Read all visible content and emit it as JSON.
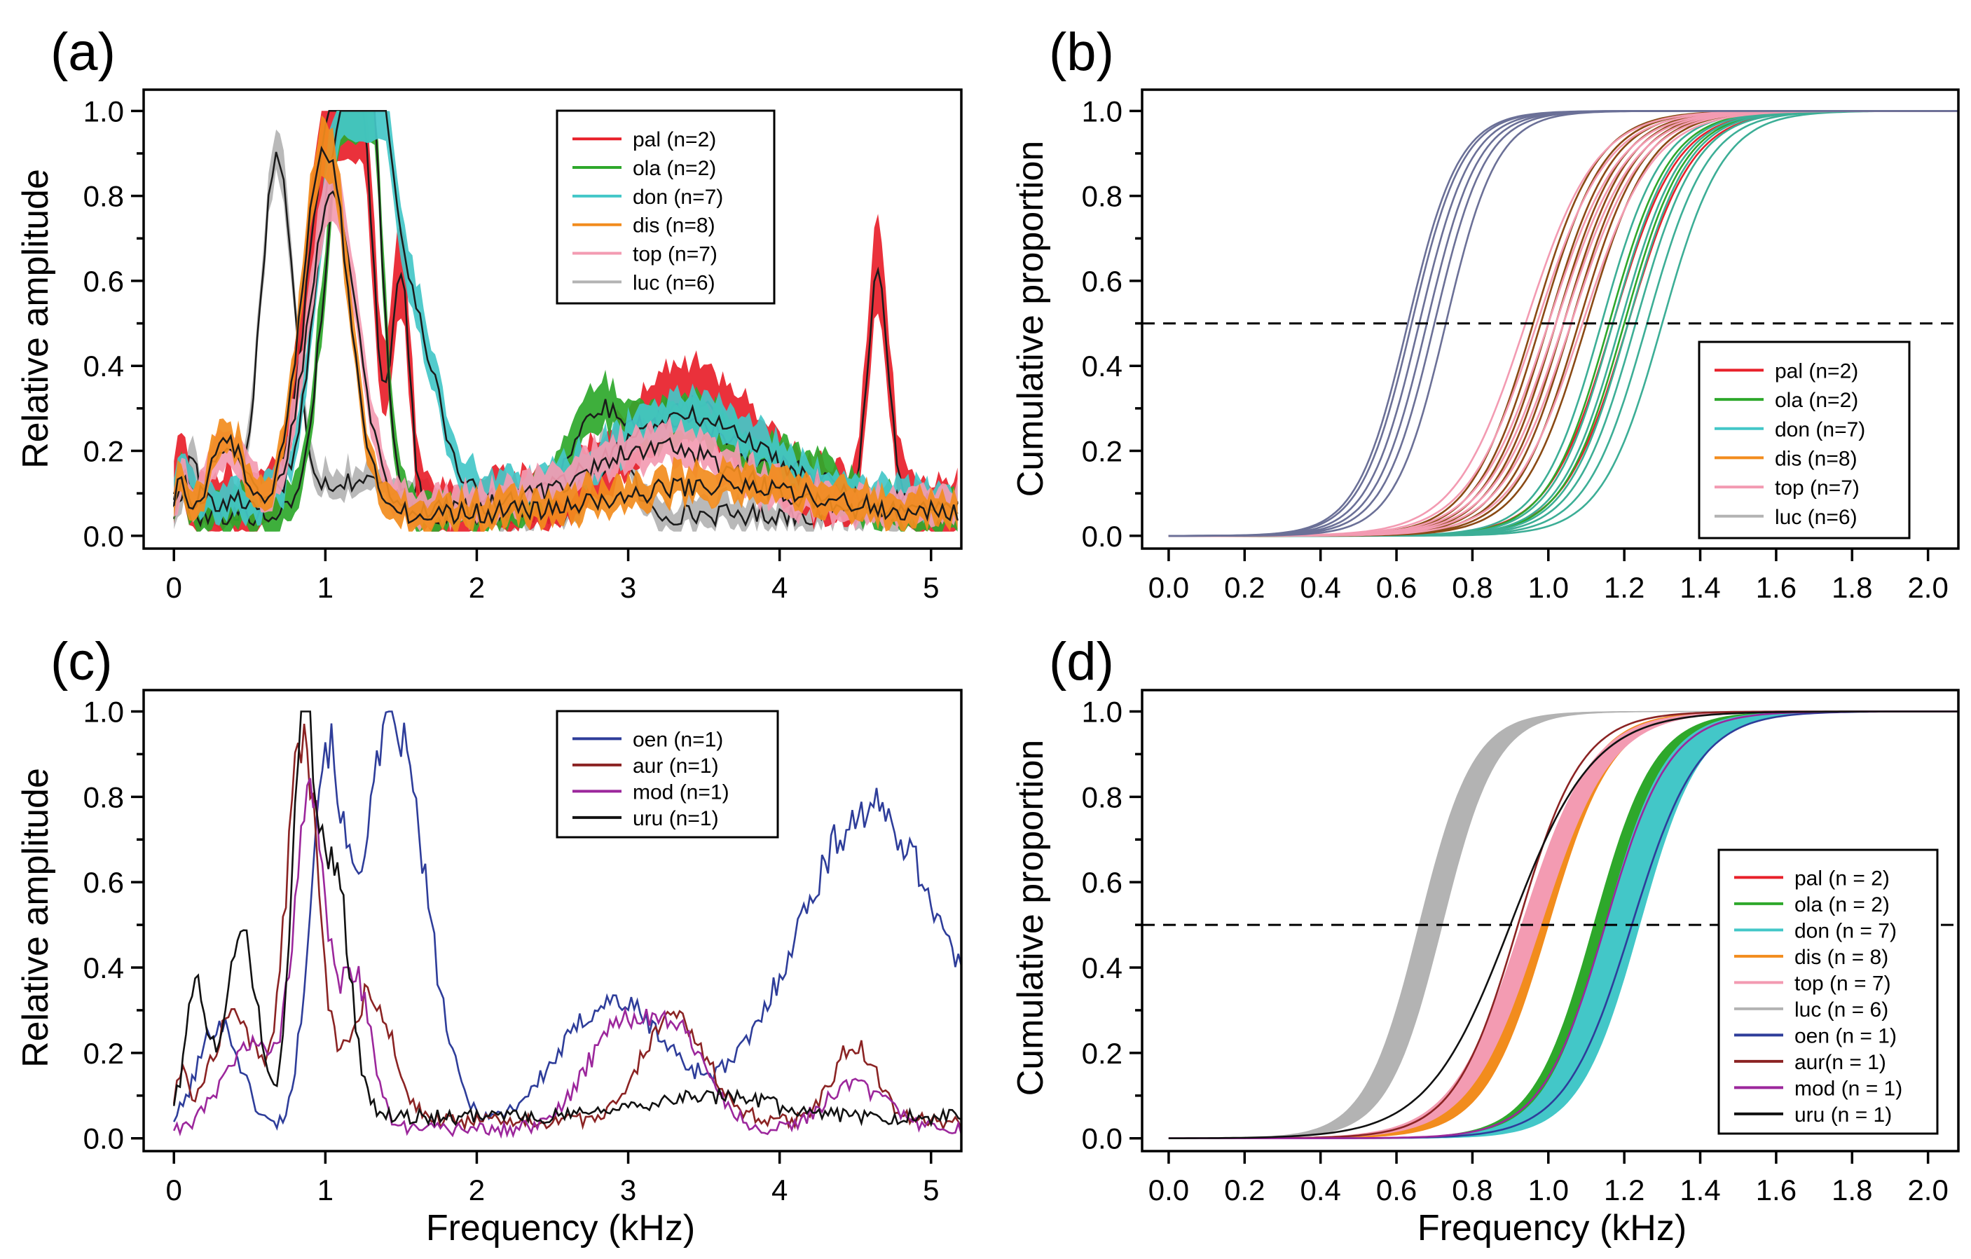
{
  "figure": {
    "panel_labels": [
      "(a)",
      "(b)",
      "(c)",
      "(d)"
    ],
    "x_axis_label": "Frequency (kHz)"
  },
  "colors": {
    "pal": "#e8202a",
    "ola": "#2ea82b",
    "don": "#43c7c8",
    "dis": "#f28c1d",
    "top": "#f39bb2",
    "luc": "#b3b3b3",
    "oen": "#2e3d9a",
    "aur": "#8b2323",
    "mod": "#9c279c",
    "uru": "#111111",
    "dark": "#1a1a1a",
    "slate": "#6b7097"
  },
  "chart_data": [
    {
      "id": "a",
      "type": "area",
      "title": "(a)",
      "xlabel": "",
      "ylabel": "Relative amplitude",
      "xlim": [
        -0.2,
        5.2
      ],
      "ylim": [
        -0.03,
        1.05
      ],
      "xticks": [
        0,
        1,
        2,
        3,
        4,
        5
      ],
      "yticks": [
        0.0,
        0.2,
        0.4,
        0.6,
        0.8,
        1.0
      ],
      "xtick_labels": [
        "0",
        "1",
        "2",
        "3",
        "4",
        "5"
      ],
      "ytick_labels": [
        "0.0",
        "0.2",
        "0.4",
        "0.6",
        "0.8",
        "1.0"
      ],
      "legend_position": "top-right",
      "legend": [
        "pal (n=2)",
        "ola (n=2)",
        "don (n=7)",
        "dis (n=8)",
        "top (n=7)",
        "luc (n=6)"
      ],
      "series": [
        {
          "name": "pal (n=2)",
          "key": "pal",
          "peaks": [
            [
              0.05,
              0.1,
              0.05
            ],
            [
              1.0,
              0.75,
              0.2
            ],
            [
              1.2,
              0.95,
              0.15
            ],
            [
              1.5,
              0.55,
              0.08
            ],
            [
              3.4,
              0.25,
              0.6
            ],
            [
              4.65,
              0.55,
              0.1
            ]
          ],
          "base": 0.06,
          "band": 0.14
        },
        {
          "name": "ola (n=2)",
          "key": "ola",
          "peaks": [
            [
              0.05,
              0.08,
              0.05
            ],
            [
              1.1,
              0.75,
              0.18
            ],
            [
              1.27,
              0.95,
              0.14
            ],
            [
              2.8,
              0.22,
              0.3
            ],
            [
              3.4,
              0.22,
              0.4
            ],
            [
              4.1,
              0.1,
              0.4
            ]
          ],
          "base": 0.05,
          "band": 0.08
        },
        {
          "name": "don (n=7)",
          "key": "don",
          "peaks": [
            [
              0.05,
              0.08,
              0.05
            ],
            [
              1.05,
              0.65,
              0.2
            ],
            [
              1.28,
              0.9,
              0.18
            ],
            [
              1.55,
              0.45,
              0.25
            ],
            [
              3.4,
              0.2,
              0.7
            ]
          ],
          "base": 0.08,
          "band": 0.07
        },
        {
          "name": "dis (n=8)",
          "key": "dis",
          "peaks": [
            [
              0.05,
              0.08,
              0.05
            ],
            [
              0.35,
              0.18,
              0.15
            ],
            [
              1.0,
              0.86,
              0.22
            ],
            [
              3.6,
              0.07,
              0.9
            ]
          ],
          "base": 0.05,
          "band": 0.06
        },
        {
          "name": "top (n=7)",
          "key": "top",
          "peaks": [
            [
              0.05,
              0.07,
              0.05
            ],
            [
              0.35,
              0.16,
              0.15
            ],
            [
              1.05,
              0.75,
              0.23
            ],
            [
              3.2,
              0.15,
              0.7
            ]
          ],
          "base": 0.06,
          "band": 0.07
        },
        {
          "name": "luc (n=6)",
          "key": "luc",
          "peaks": [
            [
              0.12,
              0.14,
              0.06
            ],
            [
              0.68,
              0.82,
              0.15
            ],
            [
              1.2,
              0.08,
              0.5
            ],
            [
              2.9,
              0.18,
              0.15
            ]
          ],
          "base": 0.05,
          "band": 0.05
        }
      ]
    },
    {
      "id": "b",
      "type": "line",
      "title": "(b)",
      "xlabel": "",
      "ylabel": "Cumulative proportion",
      "xlim": [
        -0.07,
        2.08
      ],
      "ylim": [
        -0.03,
        1.05
      ],
      "xticks": [
        0.0,
        0.2,
        0.4,
        0.6,
        0.8,
        1.0,
        1.2,
        1.4,
        1.6,
        1.8,
        2.0
      ],
      "yticks": [
        0.0,
        0.2,
        0.4,
        0.6,
        0.8,
        1.0
      ],
      "xtick_labels": [
        "0.0",
        "0.2",
        "0.4",
        "0.6",
        "0.8",
        "1.0",
        "1.2",
        "1.4",
        "1.6",
        "1.8",
        "2.0"
      ],
      "ytick_labels": [
        "0.0",
        "0.2",
        "0.4",
        "0.6",
        "0.8",
        "1.0"
      ],
      "reference_line": 0.5,
      "legend_position": "bottom-right",
      "legend": [
        "pal (n=2)",
        "ola (n=2)",
        "don (n=7)",
        "dis (n=8)",
        "top (n=7)",
        "luc (n=6)"
      ],
      "series": [
        {
          "name": "pal (n=2)",
          "key": "pal",
          "medians": [
            1.17,
            1.21
          ],
          "spread": 0.2
        },
        {
          "name": "ola (n=2)",
          "key": "ola",
          "medians": [
            1.16,
            1.2
          ],
          "spread": 0.19
        },
        {
          "name": "don (n=7)",
          "key": "don",
          "medians": [
            1.14,
            1.17,
            1.19,
            1.21,
            1.23,
            1.26,
            1.3
          ],
          "spread": 0.19
        },
        {
          "name": "dis (n=8)",
          "key": "dis",
          "medians": [
            0.96,
            0.98,
            1.0,
            1.02,
            1.04,
            1.06,
            1.08,
            1.1
          ],
          "spread": 0.2
        },
        {
          "name": "top (n=7)",
          "key": "top",
          "medians": [
            0.94,
            0.97,
            1.0,
            1.02,
            1.04,
            1.06,
            1.09
          ],
          "spread": 0.22
        },
        {
          "name": "luc (n=6)",
          "key": "luc",
          "medians": [
            0.63,
            0.64,
            0.66,
            0.68,
            0.7,
            0.73
          ],
          "spread": 0.16
        }
      ]
    },
    {
      "id": "c",
      "type": "line",
      "title": "(c)",
      "xlabel": "Frequency (kHz)",
      "ylabel": "Relative amplitude",
      "xlim": [
        -0.2,
        5.2
      ],
      "ylim": [
        -0.03,
        1.05
      ],
      "xticks": [
        0,
        1,
        2,
        3,
        4,
        5
      ],
      "yticks": [
        0.0,
        0.2,
        0.4,
        0.6,
        0.8,
        1.0
      ],
      "xtick_labels": [
        "0",
        "1",
        "2",
        "3",
        "4",
        "5"
      ],
      "ytick_labels": [
        "0.0",
        "0.2",
        "0.4",
        "0.6",
        "0.8",
        "1.0"
      ],
      "legend_position": "top-right",
      "legend": [
        "oen (n=1)",
        "aur (n=1)",
        "mod (n=1)",
        "uru (n=1)"
      ],
      "series": [
        {
          "name": "oen (n=1)",
          "key": "oen",
          "peaks": [
            [
              0.3,
              0.25,
              0.2
            ],
            [
              1.0,
              0.8,
              0.15
            ],
            [
              1.45,
              0.95,
              0.3
            ],
            [
              2.9,
              0.3,
              0.5
            ],
            [
              4.6,
              0.75,
              0.7
            ]
          ],
          "base": 0.02,
          "noise": 0.05
        },
        {
          "name": "aur (n=1)",
          "key": "aur",
          "peaks": [
            [
              0.05,
              0.12,
              0.05
            ],
            [
              0.4,
              0.25,
              0.2
            ],
            [
              0.85,
              0.9,
              0.15
            ],
            [
              1.3,
              0.3,
              0.2
            ],
            [
              3.3,
              0.25,
              0.3
            ],
            [
              4.5,
              0.18,
              0.2
            ]
          ],
          "base": 0.04,
          "noise": 0.05
        },
        {
          "name": "mod (n=1)",
          "key": "mod",
          "peaks": [
            [
              0.5,
              0.2,
              0.25
            ],
            [
              0.9,
              0.75,
              0.15
            ],
            [
              1.2,
              0.35,
              0.15
            ],
            [
              2.9,
              0.2,
              0.3
            ],
            [
              3.3,
              0.22,
              0.3
            ],
            [
              4.5,
              0.1,
              0.3
            ]
          ],
          "base": 0.02,
          "noise": 0.05
        },
        {
          "name": "uru (n=1)",
          "key": "uru",
          "peaks": [
            [
              0.15,
              0.3,
              0.1
            ],
            [
              0.45,
              0.42,
              0.15
            ],
            [
              0.85,
              0.9,
              0.1
            ],
            [
              1.05,
              0.6,
              0.15
            ],
            [
              3.5,
              0.05,
              0.6
            ]
          ],
          "base": 0.05,
          "noise": 0.05
        }
      ]
    },
    {
      "id": "d",
      "type": "line",
      "title": "(d)",
      "xlabel": "Frequency (kHz)",
      "ylabel": "Cumulative proportion",
      "xlim": [
        -0.07,
        2.08
      ],
      "ylim": [
        -0.03,
        1.05
      ],
      "xticks": [
        0.0,
        0.2,
        0.4,
        0.6,
        0.8,
        1.0,
        1.2,
        1.4,
        1.6,
        1.8,
        2.0
      ],
      "yticks": [
        0.0,
        0.2,
        0.4,
        0.6,
        0.8,
        1.0
      ],
      "xtick_labels": [
        "0.0",
        "0.2",
        "0.4",
        "0.6",
        "0.8",
        "1.0",
        "1.2",
        "1.4",
        "1.6",
        "1.8",
        "2.0"
      ],
      "ytick_labels": [
        "0.0",
        "0.2",
        "0.4",
        "0.6",
        "0.8",
        "1.0"
      ],
      "reference_line": 0.5,
      "legend_position": "bottom-right",
      "legend": [
        "pal (n = 2)",
        "ola (n = 2)",
        "don (n = 7)",
        "dis (n = 8)",
        "top (n = 7)",
        "luc (n = 6)",
        "oen (n = 1)",
        " aur(n = 1)",
        "mod (n = 1)",
        "uru (n = 1)"
      ],
      "series": [
        {
          "name": "pal (n = 2)",
          "key": "pal",
          "band": [
            1.15,
            1.22
          ],
          "spread": 0.2
        },
        {
          "name": "ola (n = 2)",
          "key": "ola",
          "band": [
            1.12,
            1.17
          ],
          "spread": 0.19
        },
        {
          "name": "don (n = 7)",
          "key": "don",
          "band": [
            1.15,
            1.24
          ],
          "spread": 0.19
        },
        {
          "name": "dis (n = 8)",
          "key": "dis",
          "band": [
            0.95,
            1.0
          ],
          "spread": 0.2
        },
        {
          "name": "top (n = 7)",
          "key": "top",
          "band": [
            0.93,
            0.98
          ],
          "spread": 0.22
        },
        {
          "name": "luc (n = 6)",
          "key": "luc",
          "band": [
            0.66,
            0.72
          ],
          "spread": 0.17
        },
        {
          "name": "oen (n = 1)",
          "key": "oen",
          "median": 1.22,
          "spread": 0.21
        },
        {
          "name": " aur(n = 1)",
          "key": "aur",
          "median": 0.92,
          "spread": 0.2
        },
        {
          "name": "mod (n = 1)",
          "key": "mod",
          "median": 1.15,
          "spread": 0.2
        },
        {
          "name": "uru (n = 1)",
          "key": "uru",
          "median": 0.9,
          "spread": 0.26
        }
      ]
    }
  ]
}
